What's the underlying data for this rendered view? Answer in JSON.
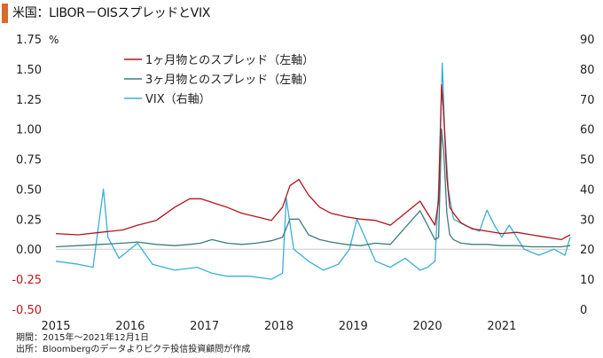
{
  "title": "米国：LIBOR－OISスプレッドとVIX",
  "notes": {
    "period": "期間：2015年～2021年12月1日",
    "source": "出所：Bloombergのデータよりピクテ投信投資顧問が作成"
  },
  "chart_data": {
    "type": "line",
    "title": "米国：LIBOR－OISスプレッドとVIX",
    "x_ticks": [
      "2015",
      "2016",
      "2017",
      "2018",
      "2019",
      "2020",
      "2021"
    ],
    "x_range": [
      2015.0,
      2021.92
    ],
    "y_left": {
      "unit": "%",
      "range": [
        -0.5,
        1.75
      ],
      "ticks": [
        "1.75",
        "1.50",
        "1.25",
        "1.00",
        "0.75",
        "0.50",
        "0.25",
        "0.00",
        "-0.25",
        "-0.50"
      ],
      "tick_values": [
        1.75,
        1.5,
        1.25,
        1.0,
        0.75,
        0.5,
        0.25,
        0.0,
        -0.25,
        -0.5
      ]
    },
    "y_right": {
      "range": [
        0,
        90
      ],
      "ticks": [
        "90",
        "80",
        "70",
        "60",
        "50",
        "40",
        "30",
        "20",
        "10",
        "0"
      ],
      "tick_values": [
        90,
        80,
        70,
        60,
        50,
        40,
        30,
        20,
        10,
        0
      ]
    },
    "legend_position": "top-left",
    "series": [
      {
        "name": "1ヶ月物とのスプレッド（左軸）",
        "axis": "left",
        "color": "#b0151b",
        "x": [
          2015.0,
          2015.3,
          2015.6,
          2015.9,
          2016.1,
          2016.35,
          2016.6,
          2016.8,
          2016.95,
          2017.1,
          2017.3,
          2017.5,
          2017.7,
          2017.9,
          2018.05,
          2018.15,
          2018.27,
          2018.4,
          2018.55,
          2018.7,
          2018.9,
          2019.1,
          2019.3,
          2019.5,
          2019.7,
          2019.9,
          2020.0,
          2020.1,
          2020.15,
          2020.19,
          2020.22,
          2020.26,
          2020.3,
          2020.35,
          2020.45,
          2020.6,
          2020.8,
          2021.0,
          2021.2,
          2021.4,
          2021.6,
          2021.8,
          2021.92
        ],
        "y": [
          0.13,
          0.12,
          0.14,
          0.16,
          0.2,
          0.24,
          0.35,
          0.42,
          0.42,
          0.39,
          0.35,
          0.3,
          0.27,
          0.24,
          0.35,
          0.53,
          0.58,
          0.45,
          0.35,
          0.3,
          0.27,
          0.25,
          0.24,
          0.2,
          0.3,
          0.4,
          0.3,
          0.2,
          0.4,
          1.37,
          1.1,
          0.6,
          0.35,
          0.3,
          0.22,
          0.17,
          0.15,
          0.13,
          0.14,
          0.12,
          0.1,
          0.08,
          0.12
        ]
      },
      {
        "name": "3ヶ月物とのスプレッド（左軸）",
        "axis": "left",
        "color": "#3d7d78",
        "x": [
          2015.0,
          2015.3,
          2015.6,
          2015.9,
          2016.1,
          2016.35,
          2016.6,
          2016.8,
          2016.95,
          2017.1,
          2017.3,
          2017.5,
          2017.7,
          2017.9,
          2018.05,
          2018.15,
          2018.27,
          2018.4,
          2018.55,
          2018.7,
          2018.9,
          2019.1,
          2019.3,
          2019.5,
          2019.7,
          2019.9,
          2020.0,
          2020.1,
          2020.15,
          2020.19,
          2020.22,
          2020.26,
          2020.3,
          2020.35,
          2020.45,
          2020.6,
          2020.8,
          2021.0,
          2021.2,
          2021.4,
          2021.6,
          2021.8,
          2021.92
        ],
        "y": [
          0.02,
          0.03,
          0.04,
          0.05,
          0.06,
          0.04,
          0.03,
          0.04,
          0.05,
          0.08,
          0.05,
          0.04,
          0.05,
          0.07,
          0.1,
          0.25,
          0.25,
          0.12,
          0.08,
          0.06,
          0.04,
          0.03,
          0.05,
          0.04,
          0.18,
          0.32,
          0.2,
          0.08,
          0.1,
          1.0,
          0.8,
          0.3,
          0.12,
          0.08,
          0.05,
          0.04,
          0.04,
          0.03,
          0.03,
          0.02,
          0.02,
          0.02,
          0.03
        ]
      },
      {
        "name": "VIX（右軸）",
        "axis": "right",
        "color": "#3aaed8",
        "x": [
          2015.0,
          2015.3,
          2015.5,
          2015.64,
          2015.7,
          2015.85,
          2016.1,
          2016.3,
          2016.6,
          2016.9,
          2017.1,
          2017.3,
          2017.6,
          2017.9,
          2018.05,
          2018.1,
          2018.2,
          2018.4,
          2018.6,
          2018.8,
          2018.95,
          2019.05,
          2019.3,
          2019.5,
          2019.7,
          2019.9,
          2020.0,
          2020.1,
          2020.15,
          2020.2,
          2020.23,
          2020.28,
          2020.35,
          2020.5,
          2020.7,
          2020.8,
          2020.9,
          2021.0,
          2021.1,
          2021.3,
          2021.5,
          2021.7,
          2021.85,
          2021.92
        ],
        "y": [
          16,
          15,
          14,
          40,
          24,
          17,
          22,
          15,
          13,
          14,
          12,
          11,
          11,
          10,
          12,
          37,
          20,
          16,
          13,
          15,
          20,
          30,
          16,
          14,
          17,
          13,
          14,
          16,
          40,
          82,
          60,
          40,
          30,
          28,
          26,
          33,
          28,
          24,
          28,
          20,
          18,
          20,
          18,
          24
        ]
      }
    ]
  }
}
